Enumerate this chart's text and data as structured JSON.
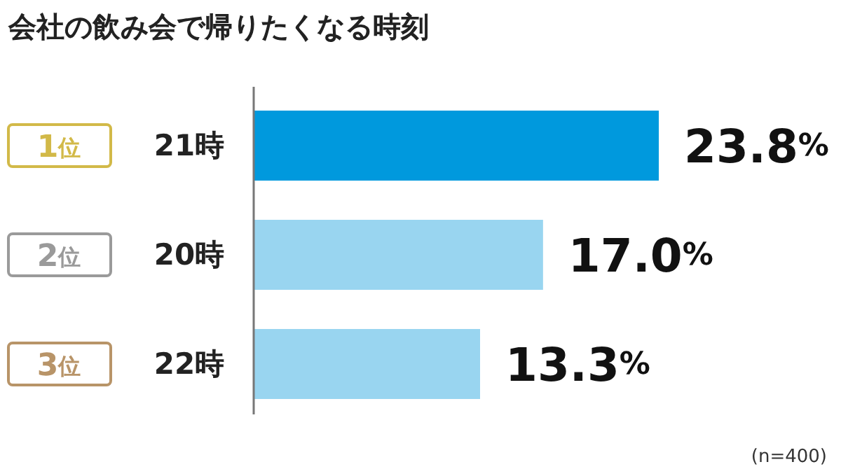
{
  "chart_data": {
    "type": "bar",
    "orientation": "horizontal",
    "relative": false,
    "title": "会社の飲み会で帰りたくなる時刻",
    "categories": [
      "21時",
      "20時",
      "22時"
    ],
    "values": [
      23.8,
      17.0,
      13.3
    ],
    "colors": [
      "#0099dd",
      "#99d5f0",
      "#99d5f0"
    ],
    "value_labels": [
      "23.8%",
      "17.0%",
      "13.3%"
    ],
    "annotations": [
      "1位",
      "2位",
      "3位",
      "(n=400)"
    ]
  }
}
